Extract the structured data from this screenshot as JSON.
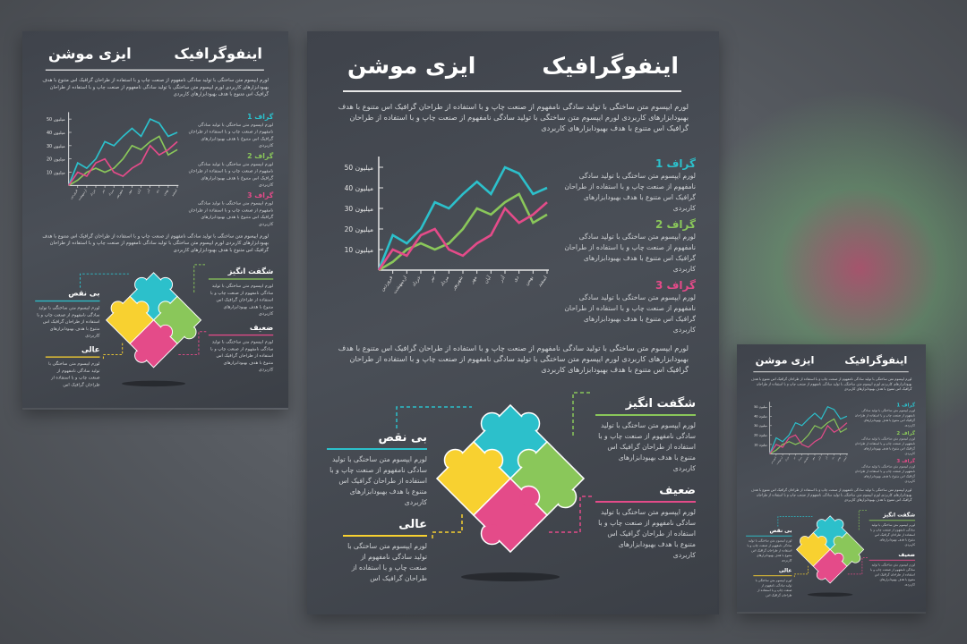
{
  "colors": {
    "graph1": "#2cc0cb",
    "graph2": "#8ac75a",
    "graph3": "#e44b89",
    "yellow": "#f8d130",
    "panel": "#42464e"
  },
  "header": {
    "title": "اینفوگرافیک",
    "subtitle": "ایزی موشن"
  },
  "intro": "لورم ایپسوم متن ساختگی با تولید سادگی نامفهوم از صنعت چاپ و با استفاده از طراحان گرافیک اس متنوع با هدف بهبودابزارهای کاربردی لورم ایپسوم متن ساختگی با تولید سادگی نامفهوم از صنعت چاپ و با استفاده از طراحان گرافیک اس متنوع با هدف بهبودابزارهای کاربردی",
  "graphs": [
    {
      "title": "گراف 1",
      "text": "لورم ایپسوم متن ساختگی با تولید سادگی نامفهوم از صنعت چاپ و با استفاده از طراحان گرافیک اس متنوع با هدف بهبودابزارهای کاربردی"
    },
    {
      "title": "گراف 2",
      "text": "لورم ایپسوم متن ساختگی با تولید سادگی نامفهوم از صنعت چاپ و با استفاده از طراحان گرافیک اس متنوع با هدف بهبودابزارهای کاربردی"
    },
    {
      "title": "گراف 3",
      "text": "لورم ایپسوم متن ساختگی با تولید سادگی نامفهوم از صنعت چاپ و با استفاده از طراحان گرافیک اس متنوع با هدف بهبودابزارهای کاربردی"
    }
  ],
  "chart_data": {
    "type": "line",
    "categories": [
      "",
      "فروردین",
      "اردیبهشت",
      "خرداد",
      "تیر",
      "مرداد",
      "شهریور",
      "مهر",
      "آبان",
      "آذر",
      "دی",
      "بهمن",
      "اسفند"
    ],
    "yticks": [
      "10 میلیون",
      "20 میلیون",
      "30 میلیون",
      "40 میلیون",
      "50 میلیون"
    ],
    "ylim": [
      0,
      50
    ],
    "series": [
      {
        "name": "گراف 1",
        "color": "#2cc0cb",
        "values": [
          0,
          17,
          13,
          20,
          33,
          30,
          37,
          43,
          37,
          50,
          47,
          37,
          40
        ]
      },
      {
        "name": "گراف 2",
        "color": "#8ac75a",
        "values": [
          0,
          4,
          10,
          13,
          10,
          13,
          20,
          30,
          27,
          33,
          37,
          23,
          27
        ]
      },
      {
        "name": "گراف 3",
        "color": "#e44b89",
        "values": [
          0,
          10,
          7,
          17,
          20,
          10,
          7,
          13,
          17,
          30,
          23,
          27,
          33
        ]
      }
    ],
    "grid": false
  },
  "paragraph2": "لورم ایپسوم متن ساختگی با تولید سادگی نامفهوم از صنعت چاپ و با استفاده از طراحان گرافیک اس متنوع با هدف بهبودابزارهای کاربردی لورم ایپسوم متن ساختگی با تولید سادگی نامفهوم از صنعت چاپ و با استفاده از طراحان گرافیک اس متنوع با هدف بهبودابزارهای کاربردی",
  "puzzle": {
    "flawless": {
      "title": "بی نقص",
      "text": "لورم ایپسوم متن ساختگی با تولید سادگی نامفهوم از صنعت چاپ و با استفاده از طراحان گرافیک اس متنوع با هدف بهبودابزارهای کاربردی"
    },
    "amazing": {
      "title": "شگفت انگیز",
      "text": "لورم ایپسوم متن ساختگی با تولید سادگی نامفهوم از صنعت چاپ و با استفاده از طراحان گرافیک اس متنوع با هدف بهبودابزارهای کاربردی"
    },
    "weak": {
      "title": "ضعیف",
      "text": "لورم ایپسوم متن ساختگی با تولید سادگی نامفهوم از صنعت چاپ و با استفاده از طراحان گرافیک اس متنوع با هدف بهبودابزارهای کاربردی"
    },
    "excellent": {
      "title": "عالی",
      "text": "لورم ایپسوم متن ساختگی با تولید سادگی نامفهوم از صنعت چاپ و با استفاده از طراحان گرافیک اس"
    }
  }
}
